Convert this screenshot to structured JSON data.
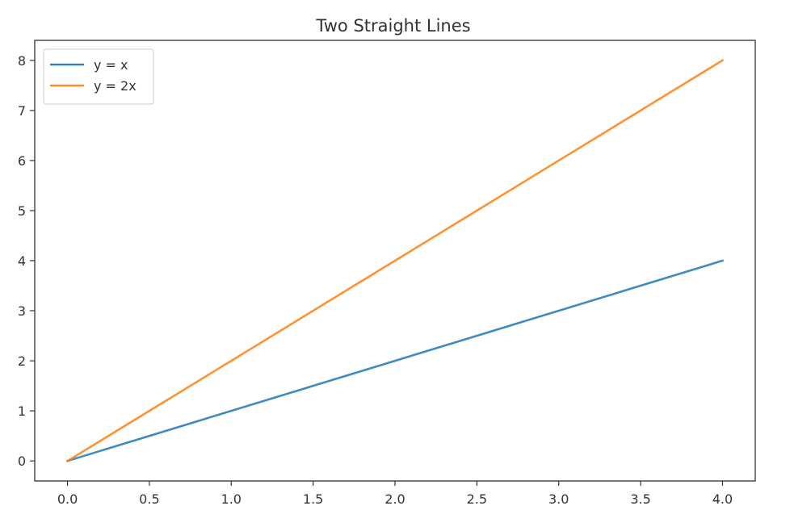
{
  "chart_data": {
    "type": "line",
    "title": "Two Straight Lines",
    "xlabel": "",
    "ylabel": "",
    "x": [
      0,
      4
    ],
    "series": [
      {
        "name": "y = x",
        "values": [
          0,
          4
        ],
        "color": "#1f77b4"
      },
      {
        "name": "y = 2x",
        "values": [
          0,
          8
        ],
        "color": "#ff7f0e"
      }
    ],
    "xlim": [
      -0.2,
      4.2
    ],
    "ylim": [
      -0.4,
      8.4
    ],
    "x_ticks": [
      "0.0",
      "0.5",
      "1.0",
      "1.5",
      "2.0",
      "2.5",
      "3.0",
      "3.5",
      "4.0"
    ],
    "y_ticks": [
      "0",
      "1",
      "2",
      "3",
      "4",
      "5",
      "6",
      "7",
      "8"
    ],
    "grid": false,
    "legend_position": "top-left"
  }
}
